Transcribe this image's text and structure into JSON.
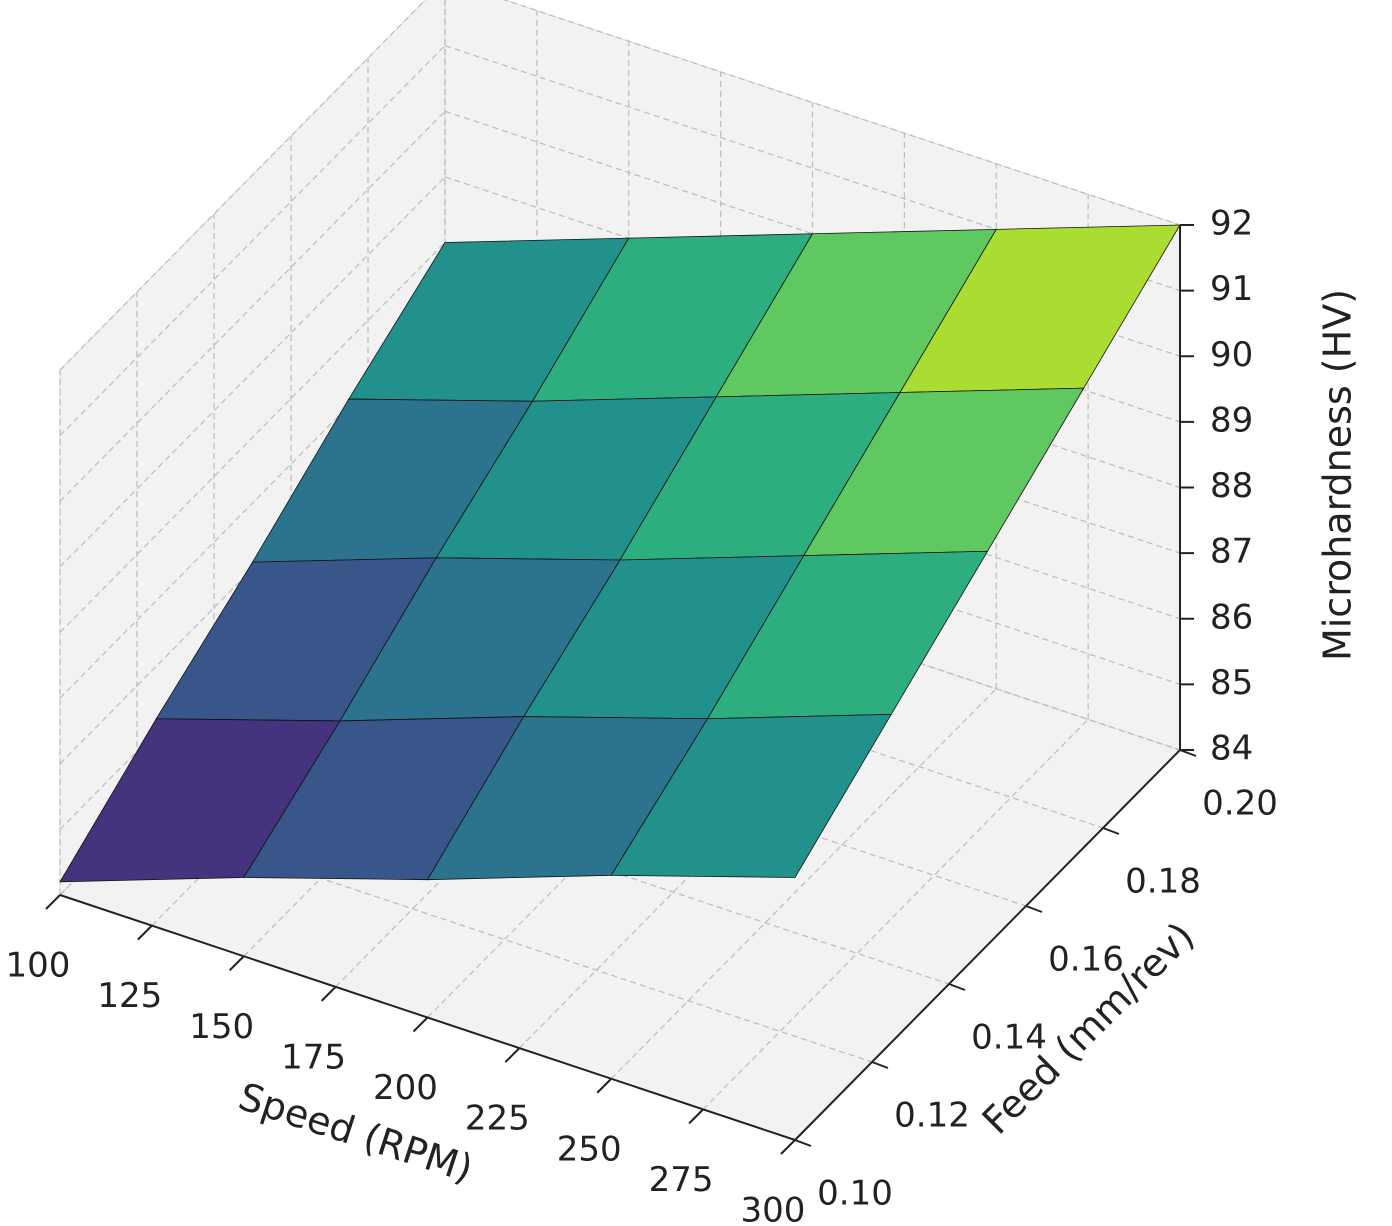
{
  "chart_data": {
    "type": "surface",
    "xlabel": "Speed (RPM)",
    "ylabel": "Feed (mm/rev)",
    "zlabel": "Microhardness (HV)",
    "x": [
      100,
      150,
      200,
      250,
      300
    ],
    "y": [
      0.1,
      0.125,
      0.15,
      0.175,
      0.2
    ],
    "z": [
      [
        84.2,
        85.2,
        86.1,
        87.1,
        88.0
      ],
      [
        85.2,
        86.1,
        87.1,
        88.0,
        89.0
      ],
      [
        86.1,
        87.1,
        88.0,
        89.0,
        90.0
      ],
      [
        87.1,
        88.0,
        89.0,
        90.0,
        91.0
      ],
      [
        88.0,
        89.0,
        90.0,
        91.0,
        92.0
      ]
    ],
    "colormap": "viridis",
    "xlim": [
      100,
      300
    ],
    "ylim": [
      0.1,
      0.2
    ],
    "zlim": [
      84,
      92
    ],
    "xticks": [
      100,
      125,
      150,
      175,
      200,
      225,
      250,
      275,
      300
    ],
    "yticks": [
      {
        "value": 0.1,
        "label": "0.10"
      },
      0.12,
      0.14,
      0.16,
      0.18,
      {
        "value": 0.2,
        "label": "0.20"
      }
    ],
    "zticks": [
      84,
      85,
      86,
      87,
      88,
      89,
      90,
      91,
      92
    ],
    "grid": true
  }
}
